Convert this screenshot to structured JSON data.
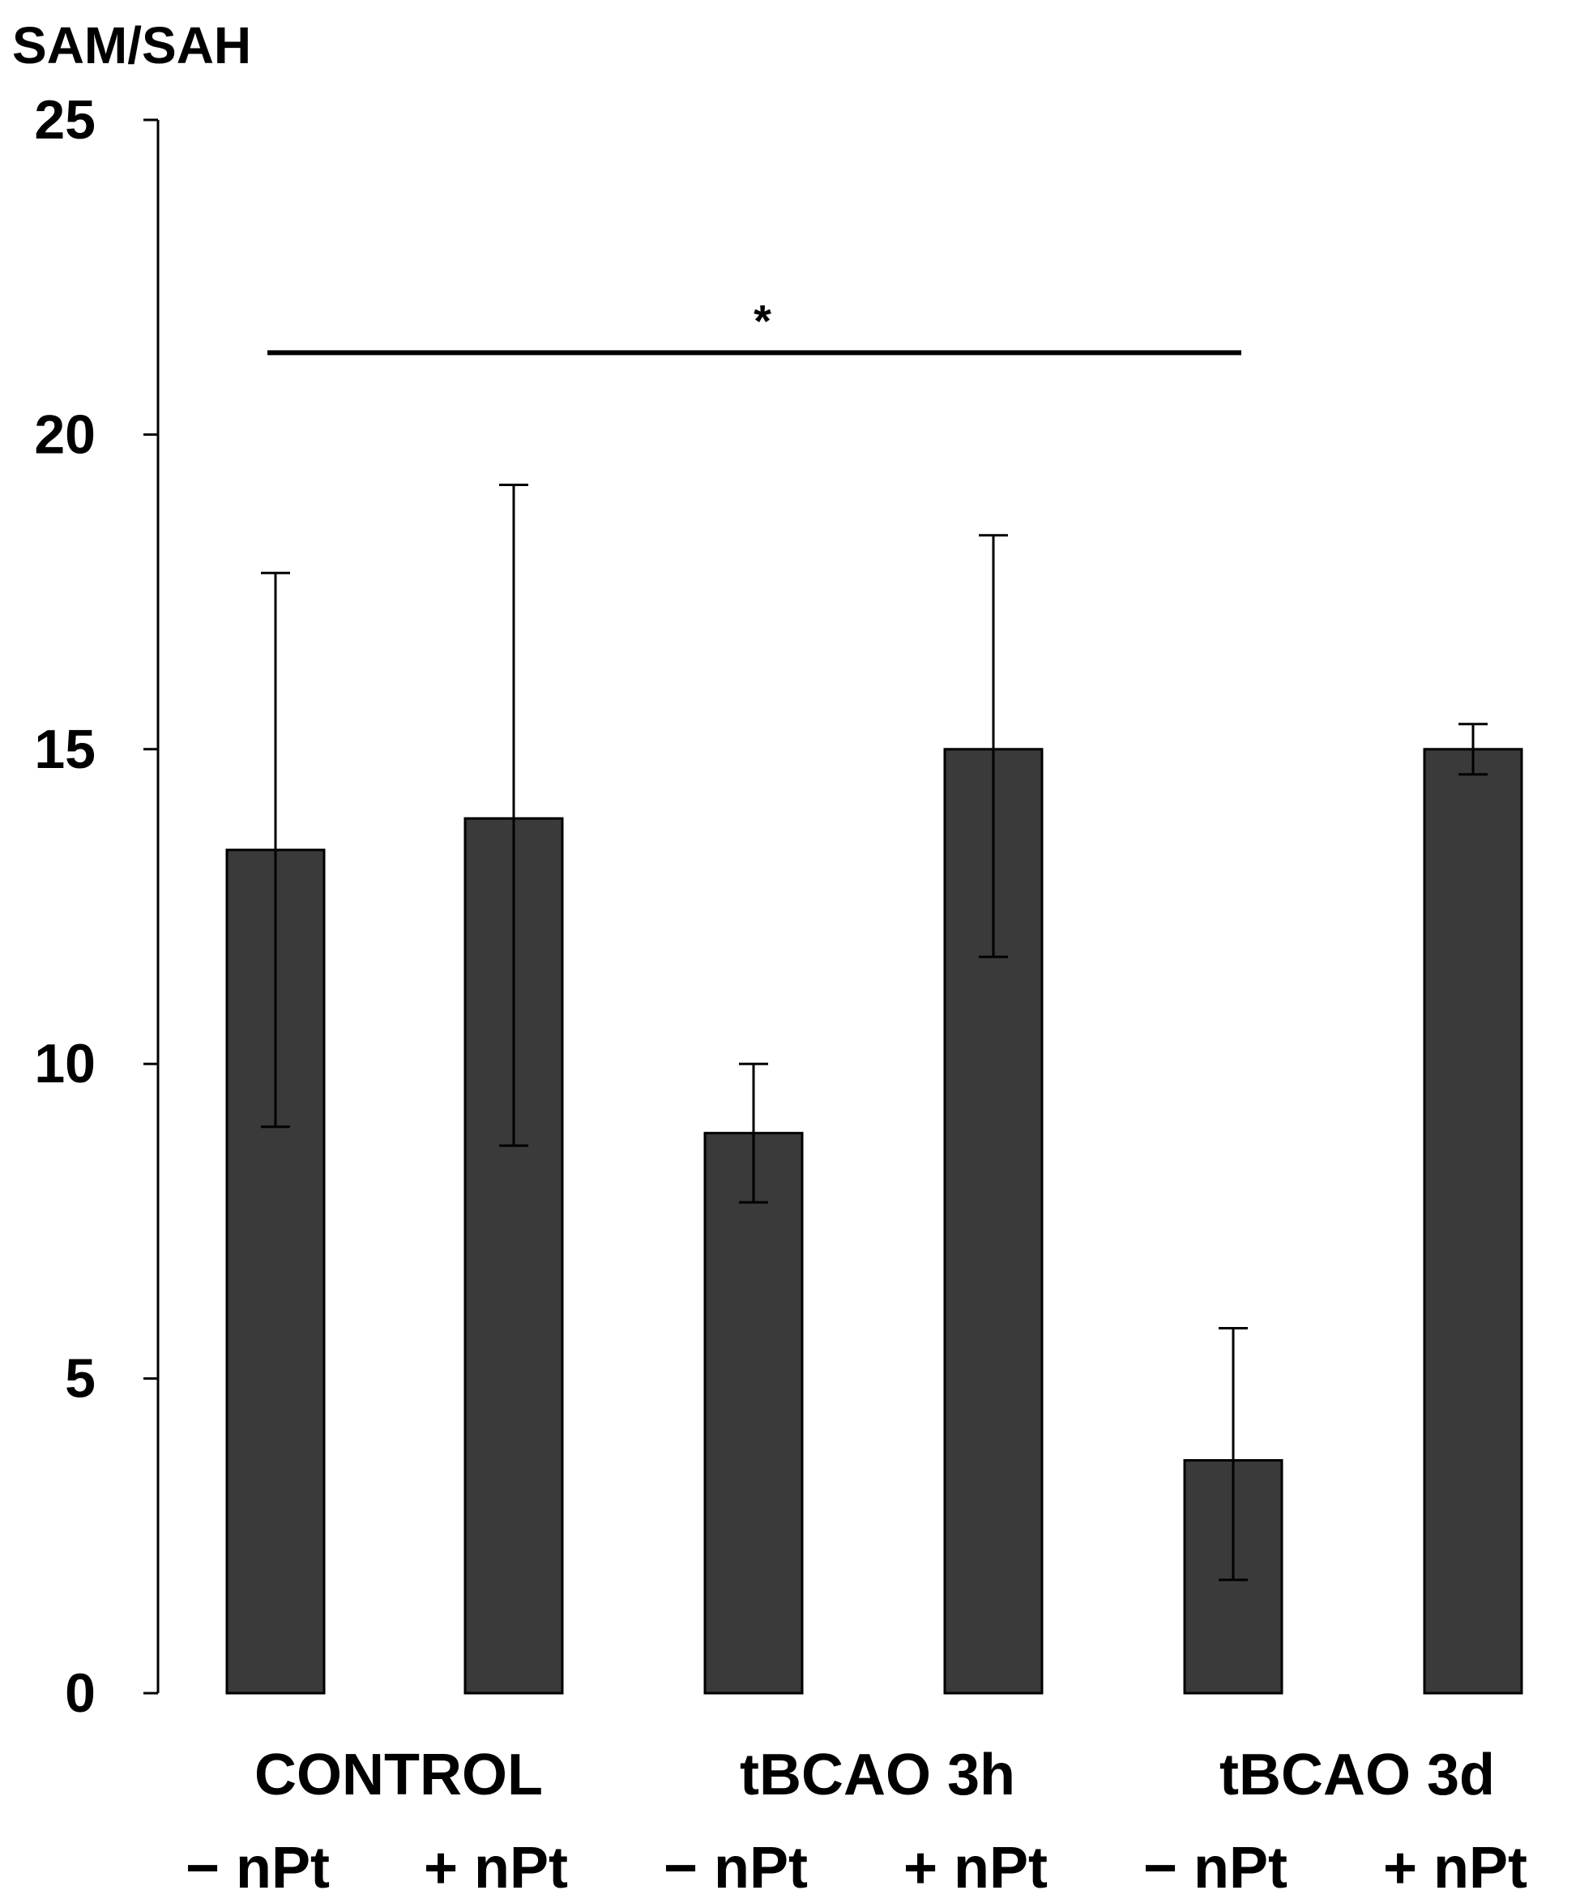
{
  "chart_data": {
    "type": "bar",
    "ylabel": "SAM/SAH",
    "ylim": [
      0,
      25
    ],
    "yticks": [
      0,
      5,
      10,
      15,
      20,
      25
    ],
    "grid": false,
    "bar_color": "#3a3a3a",
    "categories": [
      "− nPt",
      "+ nPt",
      "− nPt",
      "+ nPt",
      "− nPt",
      "+ nPt"
    ],
    "groups": [
      {
        "label": "CONTROL",
        "bars": [
          0,
          1
        ]
      },
      {
        "label": "tBCAO 3h",
        "bars": [
          2,
          3
        ]
      },
      {
        "label": "tBCAO 3d",
        "bars": [
          4,
          5
        ]
      }
    ],
    "values": [
      13.4,
      13.9,
      8.9,
      15.0,
      3.7,
      15.0
    ],
    "error_upper": [
      17.8,
      19.2,
      10.0,
      18.4,
      5.8,
      15.4
    ],
    "error_lower": [
      9.0,
      8.7,
      7.8,
      11.7,
      1.8,
      14.6
    ],
    "annotations": [
      {
        "text": "*",
        "from_bar": 0,
        "to_bar": 4,
        "y": 21.3
      }
    ]
  }
}
